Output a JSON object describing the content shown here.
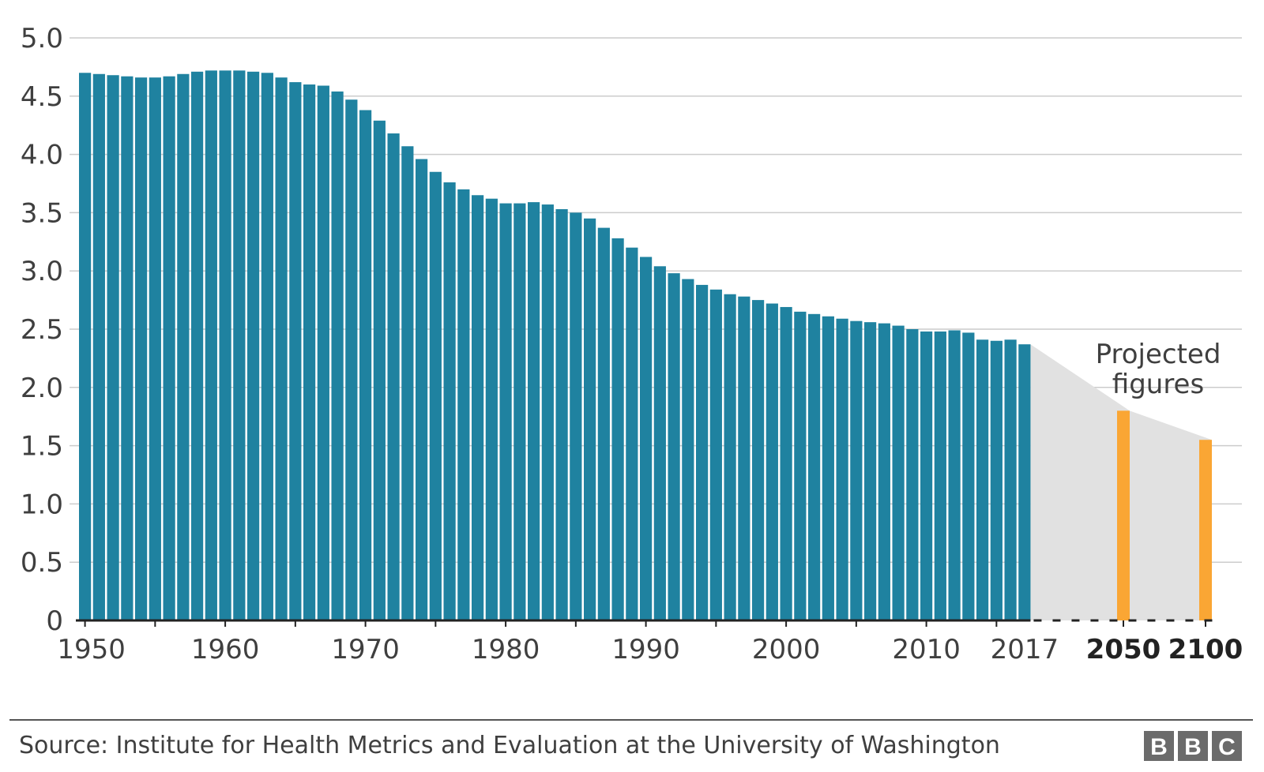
{
  "chart_data": {
    "type": "bar",
    "title": "",
    "xlabel": "",
    "ylabel": "",
    "ylim": [
      0,
      5
    ],
    "yticks": [
      "5.0",
      "4.5",
      "4.0",
      "3.5",
      "3.0",
      "2.5",
      "2.0",
      "1.5",
      "1.0",
      "0.5",
      "0"
    ],
    "xtick_labels": [
      "1950",
      "1960",
      "1970",
      "1980",
      "1990",
      "2000",
      "2010",
      "2017",
      "2050",
      "2100"
    ],
    "grid": true,
    "colors": {
      "historical": "#1f82a0",
      "projected": "#faa634",
      "projection_band": "#e1e1e1",
      "grid": "#cccccc",
      "axis": "#222222",
      "text": "#3f3f3f"
    },
    "series": [
      {
        "kind": "historical",
        "x": [
          1950,
          1951,
          1952,
          1953,
          1954,
          1955,
          1956,
          1957,
          1958,
          1959,
          1960,
          1961,
          1962,
          1963,
          1964,
          1965,
          1966,
          1967,
          1968,
          1969,
          1970,
          1971,
          1972,
          1973,
          1974,
          1975,
          1976,
          1977,
          1978,
          1979,
          1980,
          1981,
          1982,
          1983,
          1984,
          1985,
          1986,
          1987,
          1988,
          1989,
          1990,
          1991,
          1992,
          1993,
          1994,
          1995,
          1996,
          1997,
          1998,
          1999,
          2000,
          2001,
          2002,
          2003,
          2004,
          2005,
          2006,
          2007,
          2008,
          2009,
          2010,
          2011,
          2012,
          2013,
          2014,
          2015,
          2016,
          2017
        ],
        "values": [
          4.7,
          4.69,
          4.68,
          4.67,
          4.66,
          4.66,
          4.67,
          4.69,
          4.71,
          4.72,
          4.72,
          4.72,
          4.71,
          4.7,
          4.66,
          4.62,
          4.6,
          4.59,
          4.54,
          4.47,
          4.38,
          4.29,
          4.18,
          4.07,
          3.96,
          3.85,
          3.76,
          3.7,
          3.65,
          3.62,
          3.58,
          3.58,
          3.59,
          3.57,
          3.53,
          3.5,
          3.45,
          3.37,
          3.28,
          3.2,
          3.12,
          3.04,
          2.98,
          2.93,
          2.88,
          2.84,
          2.8,
          2.78,
          2.75,
          2.72,
          2.69,
          2.65,
          2.63,
          2.61,
          2.59,
          2.57,
          2.56,
          2.55,
          2.53,
          2.5,
          2.48,
          2.48,
          2.49,
          2.47,
          2.41,
          2.4,
          2.41,
          2.37
        ]
      },
      {
        "kind": "projected",
        "x": [
          2050,
          2100
        ],
        "values": [
          1.8,
          1.55
        ]
      }
    ],
    "annotations": [
      {
        "lines": [
          "Projected",
          "figures"
        ]
      }
    ]
  },
  "footer": {
    "source": "Source: Institute for Health Metrics and Evaluation at the University of Washington",
    "logo_letters": [
      "B",
      "B",
      "C"
    ]
  }
}
